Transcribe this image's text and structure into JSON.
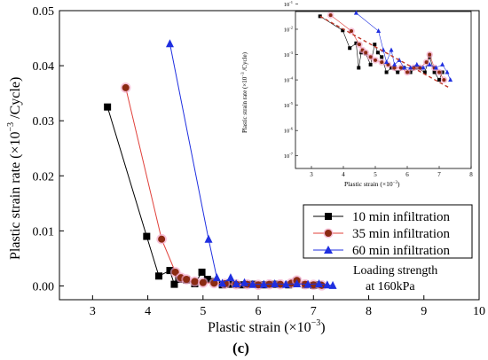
{
  "chart_data": [
    {
      "type": "line",
      "xlabel": "Plastic strain (×10",
      "xlabel_exp": "−3",
      "xlabel_tail": ")",
      "ylabel": "Plastic strain rate (×10",
      "ylabel_exp": "−3",
      "ylabel_tail": " /Cycle)",
      "xlim": [
        2.4,
        10
      ],
      "ylim": [
        -0.0025,
        0.05
      ],
      "x_ticks": [
        3,
        4,
        5,
        6,
        7,
        8,
        9,
        10
      ],
      "y_ticks": [
        0.0,
        0.01,
        0.02,
        0.03,
        0.04,
        0.05
      ],
      "y_tick_labels": [
        "0.00",
        "0.01",
        "0.02",
        "0.03",
        "0.04",
        "0.05"
      ],
      "annotation": [
        "Loading strength",
        "at 160kPa"
      ],
      "series": [
        {
          "name": "10 min infiltration",
          "color": "#000000",
          "marker": "square",
          "points": [
            [
              3.27,
              0.0325
            ],
            [
              3.98,
              0.009
            ],
            [
              4.2,
              0.0018
            ],
            [
              4.4,
              0.0028
            ],
            [
              4.48,
              0.0003
            ],
            [
              4.56,
              0.0012
            ],
            [
              4.7,
              0.0011
            ],
            [
              4.85,
              0.0004
            ],
            [
              4.98,
              0.0025
            ],
            [
              5.08,
              0.0012
            ],
            [
              5.2,
              0.0008
            ],
            [
              5.35,
              0.0002
            ],
            [
              5.5,
              0.0003
            ],
            [
              5.7,
              0.0002
            ],
            [
              5.9,
              0.0003
            ],
            [
              6.1,
              0.0002
            ],
            [
              6.3,
              0.0003
            ],
            [
              6.55,
              0.0002
            ],
            [
              6.7,
              0.0008
            ],
            [
              6.85,
              0.0002
            ],
            [
              7.0,
              0.0001
            ],
            [
              7.1,
              0.0002
            ]
          ]
        },
        {
          "name": "35 min infiltration",
          "color": "#e0403a",
          "marker_fill": "#8b2a12",
          "marker": "circle",
          "points": [
            [
              3.6,
              0.036
            ],
            [
              4.25,
              0.0085
            ],
            [
              4.5,
              0.0025
            ],
            [
              4.6,
              0.0015
            ],
            [
              4.7,
              0.0012
            ],
            [
              4.85,
              0.0008
            ],
            [
              5.0,
              0.0006
            ],
            [
              5.2,
              0.0005
            ],
            [
              5.4,
              0.0004
            ],
            [
              5.6,
              0.0003
            ],
            [
              5.8,
              0.0003
            ],
            [
              6.0,
              0.0002
            ],
            [
              6.2,
              0.0003
            ],
            [
              6.4,
              0.0003
            ],
            [
              6.6,
              0.0005
            ],
            [
              6.7,
              0.001
            ],
            [
              6.85,
              0.0003
            ],
            [
              7.0,
              0.0002
            ],
            [
              7.15,
              0.0001
            ]
          ]
        },
        {
          "name": "60 min infiltration",
          "color": "#1f2fe0",
          "marker": "triangle",
          "points": [
            [
              4.4,
              0.044
            ],
            [
              5.1,
              0.0085
            ],
            [
              5.25,
              0.0015
            ],
            [
              5.35,
              0.0005
            ],
            [
              5.5,
              0.0015
            ],
            [
              5.6,
              0.0004
            ],
            [
              5.75,
              0.0006
            ],
            [
              5.9,
              0.0003
            ],
            [
              6.1,
              0.0003
            ],
            [
              6.3,
              0.0004
            ],
            [
              6.5,
              0.0003
            ],
            [
              6.7,
              0.0004
            ],
            [
              6.9,
              0.0003
            ],
            [
              7.1,
              0.0004
            ],
            [
              7.25,
              0.0002
            ],
            [
              7.35,
              0.0001
            ]
          ]
        }
      ]
    },
    {
      "type": "line",
      "scale": "log",
      "xlabel": "Plastic strain (×10",
      "xlabel_exp": "−3",
      "xlabel_tail": ")",
      "ylabel": "Plastic strain rate (×10",
      "ylabel_exp": "−3",
      "ylabel_tail": " /Cycle)",
      "xlim": [
        2.5,
        8
      ],
      "x_ticks": [
        3,
        4,
        5,
        6,
        7,
        8
      ],
      "y_exponents": [
        -7,
        -6,
        -5,
        -4,
        -3,
        -2,
        -1
      ],
      "note": "inset (log-scale view of the same three series)"
    }
  ],
  "caption": "(c)"
}
